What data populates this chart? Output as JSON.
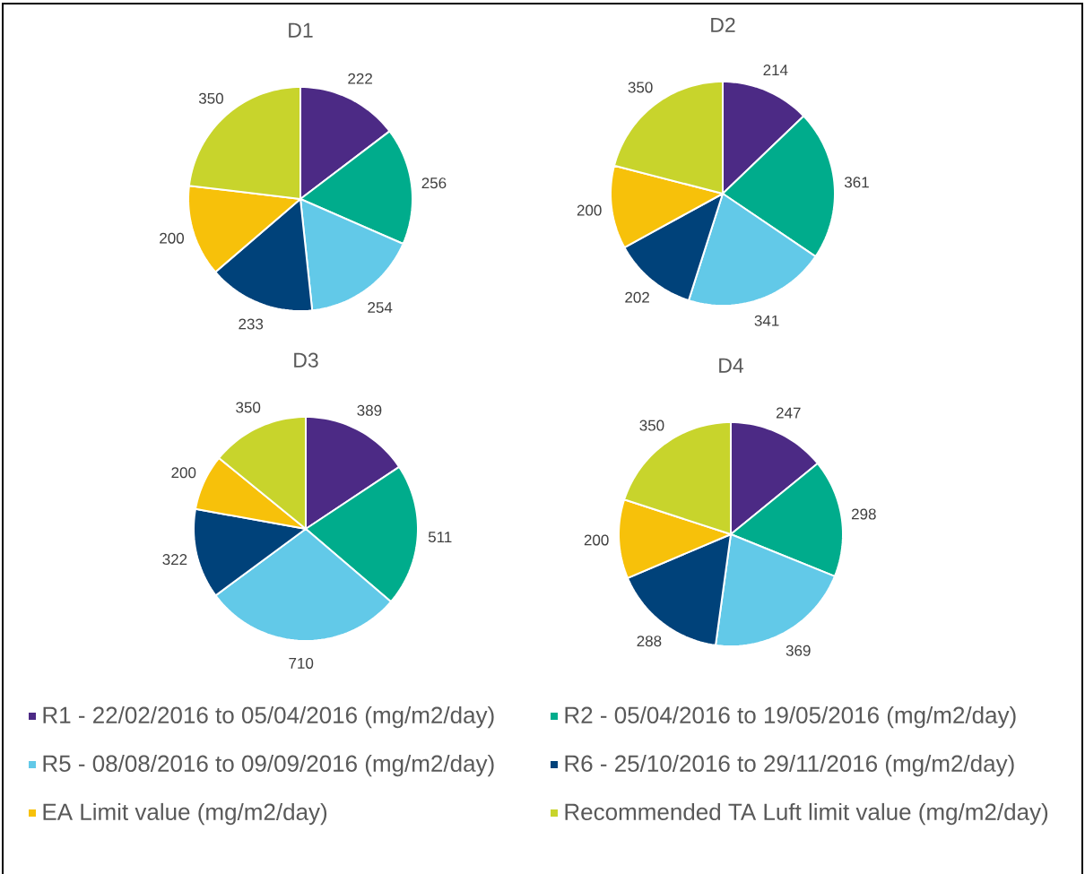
{
  "chart_data": [
    {
      "type": "pie",
      "title": "D1",
      "categories": [
        "R1 - 22/02/2016 to 05/04/2016 (mg/m2/day)",
        "R2 - 05/04/2016 to 19/05/2016 (mg/m2/day)",
        "R5 - 08/08/2016 to 09/09/2016 (mg/m2/day)",
        "R6 - 25/10/2016 to 29/11/2016 (mg/m2/day)",
        "EA Limit value (mg/m2/day)",
        "Recommended TA Luft limit value (mg/m2/day)"
      ],
      "values": [
        222,
        256,
        254,
        233,
        200,
        350
      ],
      "colors": [
        "#4c2a85",
        "#00ac8c",
        "#62c9e8",
        "#00427a",
        "#f7c10a",
        "#c8d42c"
      ],
      "data_labels": true,
      "legend": "bottom"
    },
    {
      "type": "pie",
      "title": "D2",
      "values": [
        214,
        361,
        341,
        202,
        200,
        350
      ],
      "colors": [
        "#4c2a85",
        "#00ac8c",
        "#62c9e8",
        "#00427a",
        "#f7c10a",
        "#c8d42c"
      ],
      "data_labels": true
    },
    {
      "type": "pie",
      "title": "D3",
      "values": [
        389,
        511,
        710,
        322,
        200,
        350
      ],
      "colors": [
        "#4c2a85",
        "#00ac8c",
        "#62c9e8",
        "#00427a",
        "#f7c10a",
        "#c8d42c"
      ],
      "data_labels": true
    },
    {
      "type": "pie",
      "title": "D4",
      "values": [
        247,
        298,
        369,
        288,
        200,
        350
      ],
      "colors": [
        "#4c2a85",
        "#00ac8c",
        "#62c9e8",
        "#00427a",
        "#f7c10a",
        "#c8d42c"
      ],
      "data_labels": true
    }
  ]
}
